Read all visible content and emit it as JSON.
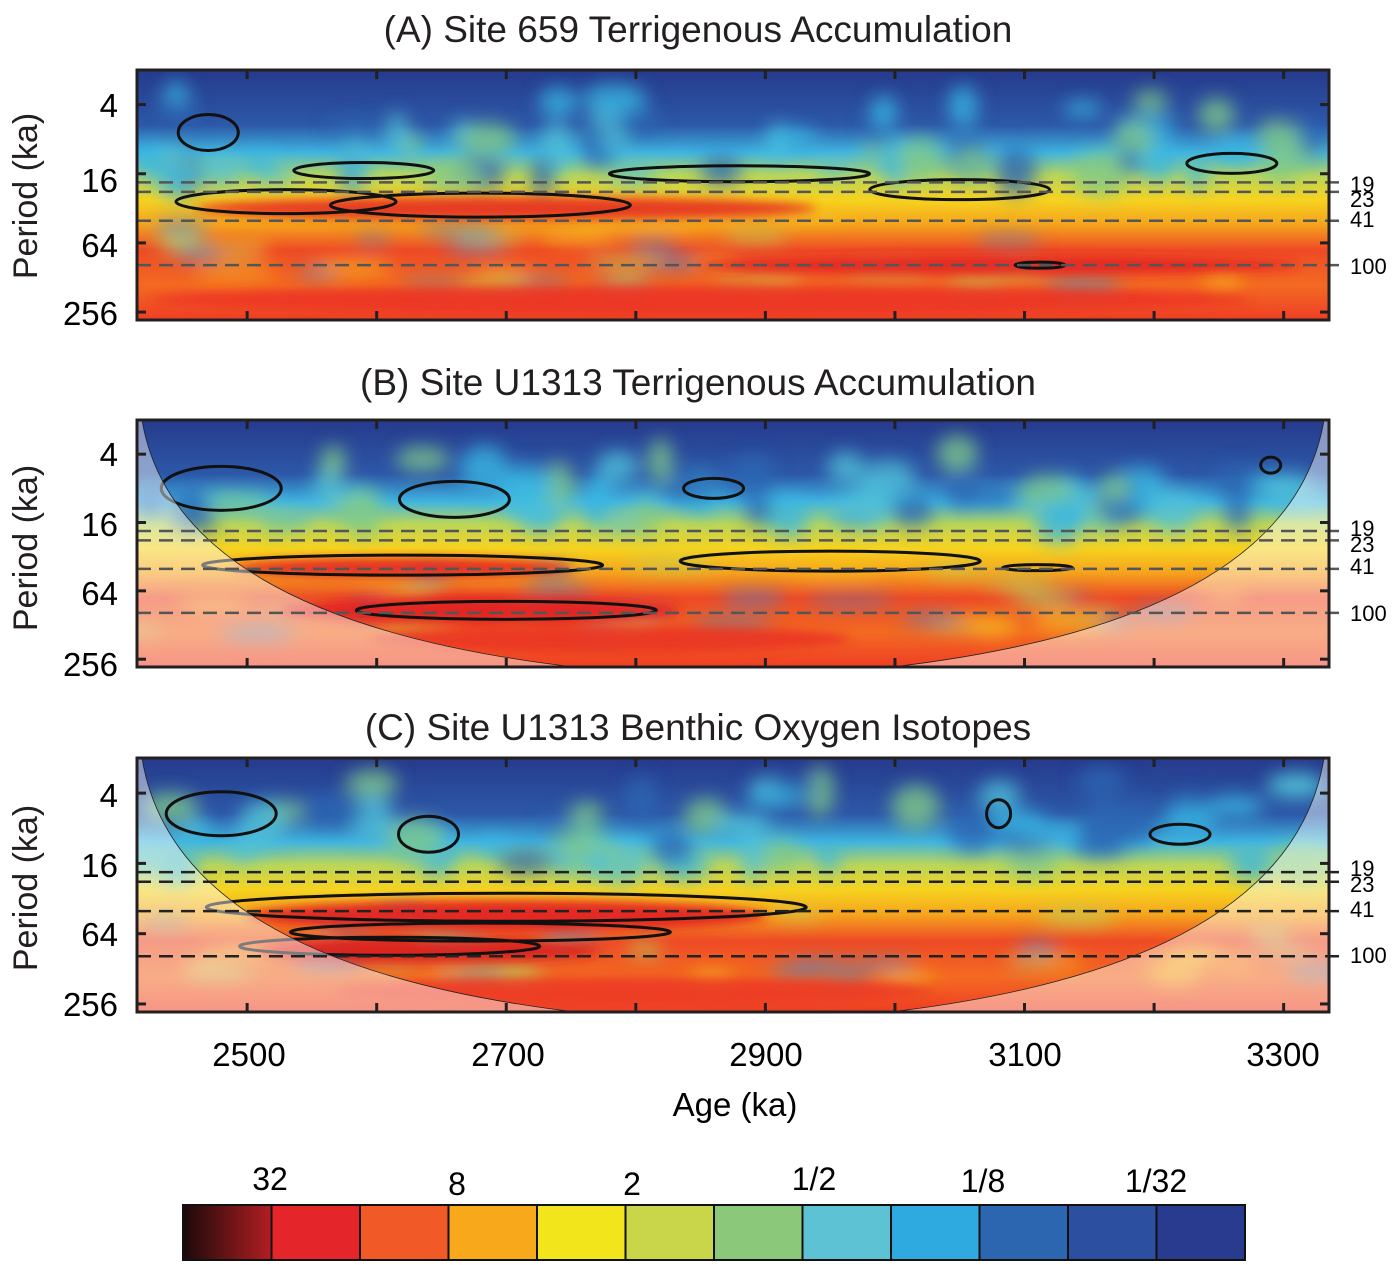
{
  "chart_data": [
    {
      "type": "heatmap",
      "title": "(A) Site 659 Terrigenous Accumulation",
      "xlabel": "",
      "ylabel": "Period (ka)",
      "xlim": [
        2415,
        3335
      ],
      "yscale": "log2-inverted",
      "ylim": [
        2,
        300
      ],
      "y_ticks": [
        "4",
        "16",
        "64",
        "256"
      ],
      "x_ticks": [],
      "reference_periods": [
        "19",
        "23",
        "41",
        "100"
      ],
      "cone_of_influence": false,
      "significance_contours": true
    },
    {
      "type": "heatmap",
      "title": "(B) Site U1313 Terrigenous Accumulation",
      "xlabel": "",
      "ylabel": "Period (ka)",
      "xlim": [
        2415,
        3335
      ],
      "yscale": "log2-inverted",
      "ylim": [
        2,
        300
      ],
      "y_ticks": [
        "4",
        "16",
        "64",
        "256"
      ],
      "x_ticks": [],
      "reference_periods": [
        "19",
        "23",
        "41",
        "100"
      ],
      "cone_of_influence": true,
      "significance_contours": true
    },
    {
      "type": "heatmap",
      "title": "(C) Site U1313 Benthic Oxygen Isotopes",
      "xlabel": "Age (ka)",
      "ylabel": "Period (ka)",
      "xlim": [
        2415,
        3335
      ],
      "yscale": "log2-inverted",
      "ylim": [
        2,
        300
      ],
      "y_ticks": [
        "4",
        "16",
        "64",
        "256"
      ],
      "x_ticks": [
        "2500",
        "2700",
        "2900",
        "3100",
        "3300"
      ],
      "reference_periods": [
        "19",
        "23",
        "41",
        "100"
      ],
      "cone_of_influence": true,
      "significance_contours": true
    }
  ],
  "colorbar": {
    "labels": [
      "32",
      "8",
      "2",
      "1/2",
      "1/8",
      "1/32"
    ],
    "colors": [
      "#7a1212",
      "#e4262a",
      "#f15a27",
      "#f7a81b",
      "#f3e51b",
      "#c9d649",
      "#8cc87a",
      "#5ec2d5",
      "#2eaae1",
      "#2c66b0",
      "#2d4fa0",
      "#283b8e"
    ]
  }
}
